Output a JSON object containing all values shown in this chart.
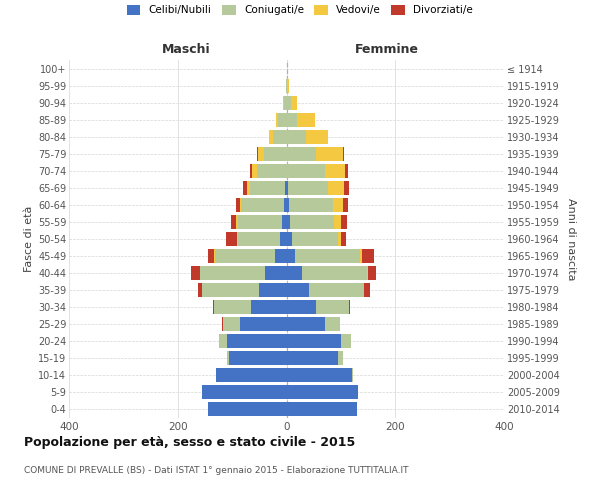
{
  "age_groups": [
    "0-4",
    "5-9",
    "10-14",
    "15-19",
    "20-24",
    "25-29",
    "30-34",
    "35-39",
    "40-44",
    "45-49",
    "50-54",
    "55-59",
    "60-64",
    "65-69",
    "70-74",
    "75-79",
    "80-84",
    "85-89",
    "90-94",
    "95-99",
    "100+"
  ],
  "birth_years": [
    "2010-2014",
    "2005-2009",
    "2000-2004",
    "1995-1999",
    "1990-1994",
    "1985-1989",
    "1980-1984",
    "1975-1979",
    "1970-1974",
    "1965-1969",
    "1960-1964",
    "1955-1959",
    "1950-1954",
    "1945-1949",
    "1940-1944",
    "1935-1939",
    "1930-1934",
    "1925-1929",
    "1920-1924",
    "1915-1919",
    "≤ 1914"
  ],
  "male": {
    "celibi": [
      145,
      155,
      130,
      105,
      110,
      85,
      65,
      50,
      40,
      22,
      12,
      8,
      5,
      2,
      0,
      0,
      0,
      0,
      0,
      0,
      0
    ],
    "coniugati": [
      0,
      0,
      0,
      5,
      15,
      32,
      68,
      105,
      120,
      110,
      78,
      82,
      78,
      65,
      55,
      42,
      25,
      15,
      4,
      1,
      0
    ],
    "vedovi": [
      0,
      0,
      0,
      0,
      0,
      0,
      0,
      0,
      0,
      1,
      1,
      2,
      3,
      5,
      8,
      10,
      8,
      5,
      2,
      0,
      0
    ],
    "divorziati": [
      0,
      0,
      0,
      0,
      0,
      1,
      2,
      8,
      15,
      12,
      20,
      10,
      6,
      8,
      5,
      2,
      0,
      0,
      0,
      0,
      0
    ]
  },
  "female": {
    "nubili": [
      130,
      132,
      120,
      95,
      100,
      70,
      55,
      42,
      28,
      15,
      10,
      6,
      5,
      2,
      0,
      0,
      0,
      0,
      0,
      0,
      0
    ],
    "coniugate": [
      0,
      0,
      2,
      8,
      18,
      28,
      60,
      100,
      120,
      120,
      85,
      82,
      80,
      75,
      70,
      55,
      35,
      20,
      8,
      1,
      0
    ],
    "vedove": [
      0,
      0,
      0,
      0,
      0,
      0,
      0,
      1,
      2,
      3,
      6,
      12,
      18,
      28,
      38,
      48,
      42,
      32,
      12,
      3,
      0
    ],
    "divorziate": [
      0,
      0,
      0,
      0,
      0,
      0,
      2,
      10,
      15,
      22,
      8,
      12,
      10,
      10,
      5,
      2,
      0,
      0,
      0,
      0,
      0
    ]
  },
  "colors": {
    "celibi": "#4472c4",
    "coniugati": "#b5c99a",
    "vedovi": "#f5c842",
    "divorziati": "#c0392b"
  },
  "xlim": 400,
  "title": "Popolazione per età, sesso e stato civile - 2015",
  "subtitle": "COMUNE DI PREVALLE (BS) - Dati ISTAT 1° gennaio 2015 - Elaborazione TUTTITALIA.IT",
  "ylabel_left": "Fasce di età",
  "ylabel_right": "Anni di nascita",
  "bg_color": "#ffffff",
  "grid_color": "#cccccc"
}
